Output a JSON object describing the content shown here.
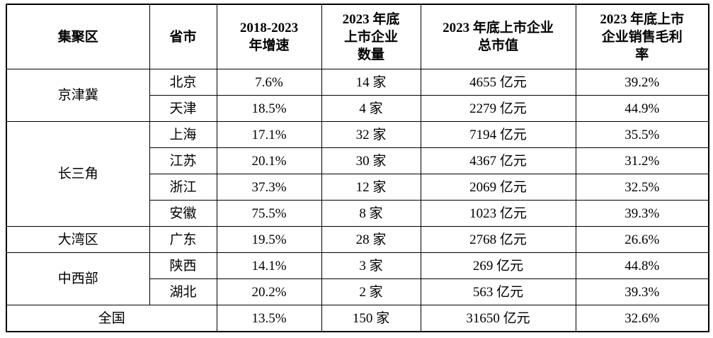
{
  "table": {
    "columns": [
      {
        "label": "集聚区"
      },
      {
        "label": "省市"
      },
      {
        "label": "2018-2023\n年增速"
      },
      {
        "label": "2023 年底\n上市企业\n数量"
      },
      {
        "label": "2023 年底上市企业\n总市值"
      },
      {
        "label": "2023 年底上市\n企业销售毛利\n率"
      }
    ],
    "groups": [
      {
        "region": "京津冀",
        "rows": [
          {
            "province": "北京",
            "growth": "7.6%",
            "count": "14 家",
            "mktcap": "4655 亿元",
            "margin": "39.2%"
          },
          {
            "province": "天津",
            "growth": "18.5%",
            "count": "4 家",
            "mktcap": "2279 亿元",
            "margin": "44.9%"
          }
        ]
      },
      {
        "region": "长三角",
        "rows": [
          {
            "province": "上海",
            "growth": "17.1%",
            "count": "32 家",
            "mktcap": "7194 亿元",
            "margin": "35.5%"
          },
          {
            "province": "江苏",
            "growth": "20.1%",
            "count": "30 家",
            "mktcap": "4367 亿元",
            "margin": "31.2%"
          },
          {
            "province": "浙江",
            "growth": "37.3%",
            "count": "12 家",
            "mktcap": "2069 亿元",
            "margin": "32.5%"
          },
          {
            "province": "安徽",
            "growth": "75.5%",
            "count": "8 家",
            "mktcap": "1023 亿元",
            "margin": "39.3%"
          }
        ]
      },
      {
        "region": "大湾区",
        "rows": [
          {
            "province": "广东",
            "growth": "19.5%",
            "count": "28 家",
            "mktcap": "2768 亿元",
            "margin": "26.6%"
          }
        ]
      },
      {
        "region": "中西部",
        "rows": [
          {
            "province": "陕西",
            "growth": "14.1%",
            "count": "3 家",
            "mktcap": "269 亿元",
            "margin": "44.8%"
          },
          {
            "province": "湖北",
            "growth": "20.2%",
            "count": "2 家",
            "mktcap": "563 亿元",
            "margin": "39.3%"
          }
        ]
      }
    ],
    "total": {
      "label": "全国",
      "growth": "13.5%",
      "count": "150 家",
      "mktcap": "31650 亿元",
      "margin": "32.6%"
    }
  },
  "chart_data": {
    "type": "table",
    "columns": [
      "集聚区",
      "省市",
      "2018-2023 年增速",
      "2023 年底上市企业数量",
      "2023 年底上市企业总市值",
      "2023 年底上市企业销售毛利率"
    ],
    "rows": [
      [
        "京津冀",
        "北京",
        "7.6%",
        "14 家",
        "4655 亿元",
        "39.2%"
      ],
      [
        "京津冀",
        "天津",
        "18.5%",
        "4 家",
        "2279 亿元",
        "44.9%"
      ],
      [
        "长三角",
        "上海",
        "17.1%",
        "32 家",
        "7194 亿元",
        "35.5%"
      ],
      [
        "长三角",
        "江苏",
        "20.1%",
        "30 家",
        "4367 亿元",
        "31.2%"
      ],
      [
        "长三角",
        "浙江",
        "37.3%",
        "12 家",
        "2069 亿元",
        "32.5%"
      ],
      [
        "长三角",
        "安徽",
        "75.5%",
        "8 家",
        "1023 亿元",
        "39.3%"
      ],
      [
        "大湾区",
        "广东",
        "19.5%",
        "28 家",
        "2768 亿元",
        "26.6%"
      ],
      [
        "中西部",
        "陕西",
        "14.1%",
        "3 家",
        "269 亿元",
        "44.8%"
      ],
      [
        "中西部",
        "湖北",
        "20.2%",
        "2 家",
        "563 亿元",
        "39.3%"
      ],
      [
        "全国",
        "",
        "13.5%",
        "150 家",
        "31650 亿元",
        "32.6%"
      ]
    ]
  }
}
